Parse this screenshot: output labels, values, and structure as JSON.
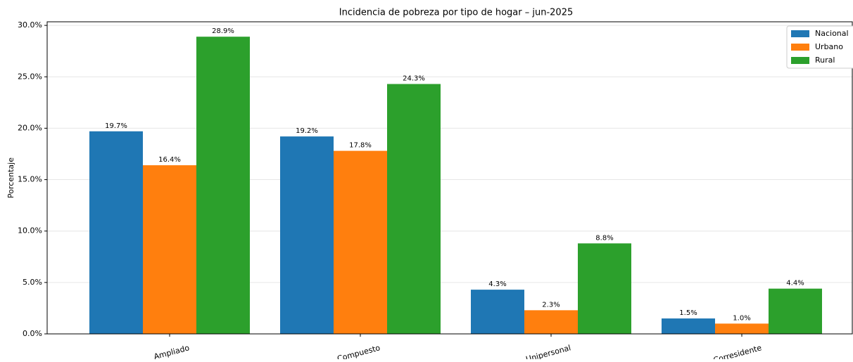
{
  "chart_data": {
    "type": "bar",
    "title": "Incidencia de pobreza por tipo de hogar – jun-2025",
    "y_label": "Porcentaje",
    "categories": [
      "Ampliado",
      "Compuesto",
      "Unipersonal",
      "Corresidente"
    ],
    "series": [
      {
        "name": "Nacional",
        "color": "#1f77b4",
        "values": [
          19.7,
          19.2,
          4.3,
          1.5
        ],
        "value_labels": [
          "19.7%",
          "19.2%",
          "4.3%",
          "1.5%"
        ]
      },
      {
        "name": "Urbano",
        "color": "#ff7f0e",
        "values": [
          16.4,
          17.8,
          2.3,
          1.0
        ],
        "value_labels": [
          "16.4%",
          "17.8%",
          "2.3%",
          "1.0%"
        ]
      },
      {
        "name": "Rural",
        "color": "#2ca02c",
        "values": [
          28.9,
          24.3,
          8.8,
          4.4
        ],
        "value_labels": [
          "28.9%",
          "24.3%",
          "8.8%",
          "4.4%"
        ]
      }
    ],
    "ylim": [
      0,
      30.35
    ],
    "yticks": [
      {
        "value": 0,
        "label": "0.0%"
      },
      {
        "value": 5,
        "label": "5.0%"
      },
      {
        "value": 10,
        "label": "10.0%"
      },
      {
        "value": 15,
        "label": "15.0%"
      },
      {
        "value": 20,
        "label": "20.0%"
      },
      {
        "value": 25,
        "label": "25.0%"
      },
      {
        "value": 30,
        "label": "30.0%"
      }
    ],
    "grid": true,
    "legend": "upper right"
  }
}
